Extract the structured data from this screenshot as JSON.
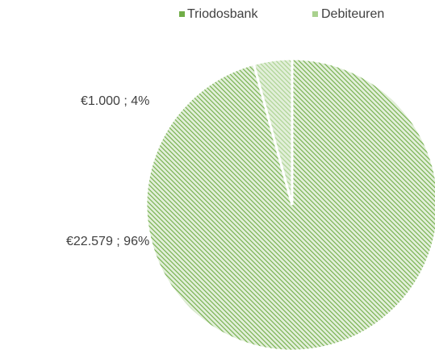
{
  "chart_data": {
    "type": "pie",
    "categories": [
      "Triodosbank",
      "Debiteuren"
    ],
    "values": [
      22579,
      1000
    ],
    "value_labels": [
      "€22.579 ; 96%",
      "€1.000 ; 4%"
    ],
    "colors": [
      "#70ad47",
      "#a9d18e"
    ],
    "legend": "top"
  }
}
